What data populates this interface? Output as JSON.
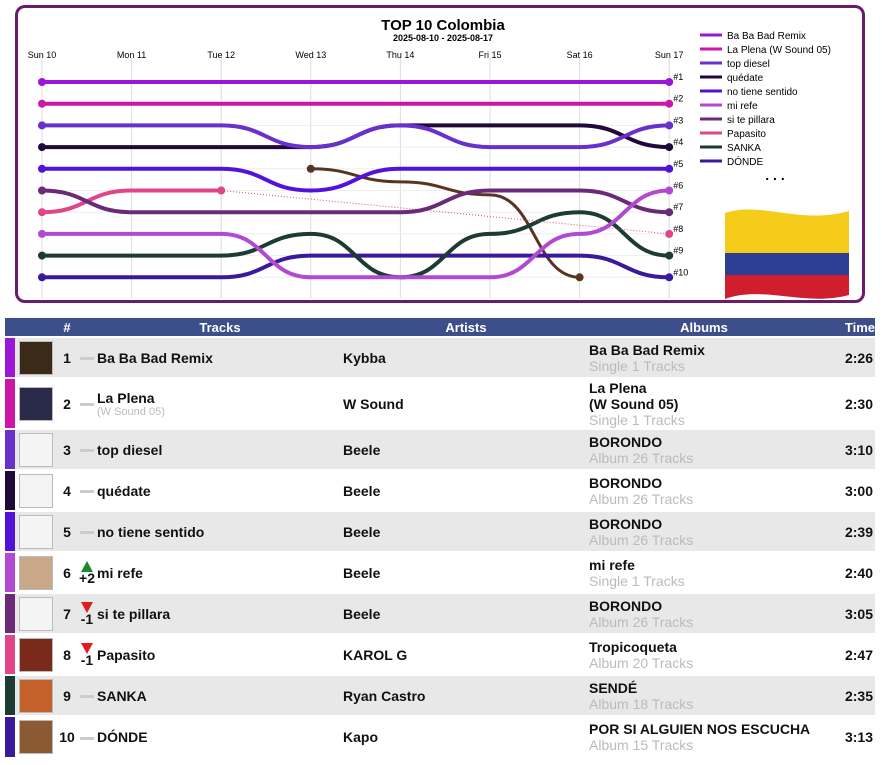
{
  "chart_data": {
    "type": "line",
    "title": "TOP 10 Colombia",
    "subtitle": "2025-08-10 - 2025-08-17",
    "x": [
      "Sun 10",
      "Mon 11",
      "Tue 12",
      "Wed 13",
      "Thu 14",
      "Fri 15",
      "Sat 16",
      "Sun 17"
    ],
    "rank_labels": [
      "#1",
      "#2",
      "#3",
      "#4",
      "#5",
      "#6",
      "#7",
      "#8",
      "#9",
      "#10"
    ],
    "ylim": [
      1,
      10
    ],
    "more_indicator": ". . .",
    "series": [
      {
        "name": "Ba Ba Bad Remix",
        "color": "#9b16d6",
        "values": [
          1,
          1,
          1,
          1,
          1,
          1,
          1,
          1
        ]
      },
      {
        "name": "La Plena (W Sound 05)",
        "color": "#cc16a8",
        "values": [
          2,
          2,
          2,
          2,
          2,
          2,
          2,
          2
        ]
      },
      {
        "name": "top diesel",
        "color": "#6a30cc",
        "values": [
          3,
          3,
          3,
          4,
          3,
          4,
          4,
          3
        ]
      },
      {
        "name": "quédate",
        "color": "#1f0a3a",
        "values": [
          4,
          4,
          4,
          4,
          3,
          3,
          3,
          4
        ]
      },
      {
        "name": "no tiene sentido",
        "color": "#5212d9",
        "values": [
          5,
          5,
          5,
          6,
          5,
          5,
          5,
          5
        ]
      },
      {
        "name": "mi refe",
        "color": "#b24ad1",
        "values": [
          8,
          8,
          8,
          10,
          10,
          10,
          8,
          6
        ]
      },
      {
        "name": "si te pillara",
        "color": "#6b2a78",
        "values": [
          6,
          7,
          7,
          7,
          7,
          6,
          6,
          7
        ]
      },
      {
        "name": "Papasito",
        "color": "#e0458a",
        "values": [
          7,
          6,
          6,
          null,
          null,
          null,
          null,
          8
        ]
      },
      {
        "name": "SANKA",
        "color": "#1c3b33",
        "values": [
          9,
          9,
          9,
          8,
          10,
          8,
          7,
          9
        ]
      },
      {
        "name": "DÓNDE",
        "color": "#3a1a9a",
        "values": [
          10,
          10,
          10,
          9,
          9,
          9,
          9,
          10
        ]
      },
      {
        "name": "",
        "color": "#5a3322",
        "values": [
          null,
          null,
          null,
          5,
          null,
          null,
          10,
          null
        ],
        "curve": [
          [
            3,
            5
          ],
          [
            4,
            5.6
          ],
          [
            5,
            6.2
          ],
          [
            6,
            10
          ]
        ]
      }
    ]
  },
  "table": {
    "headers": {
      "rank": "#",
      "tracks": "Tracks",
      "artists": "Artists",
      "albums": "Albums",
      "time": "Time"
    },
    "rows": [
      {
        "rank": "1",
        "change": "",
        "dir": "same",
        "track": "Ba Ba Bad Remix",
        "track_sub": "",
        "artist": "Kybba",
        "album": "Ba Ba Bad Remix",
        "album_sub": "Single 1 Tracks",
        "time": "2:26",
        "color": "#9b16d6",
        "cover": "#3a2a18"
      },
      {
        "rank": "2",
        "change": "",
        "dir": "same",
        "track": "La Plena",
        "track_sub": "(W Sound 05)",
        "artist": "W Sound",
        "album": "La Plena\n(W Sound 05)",
        "album_sub": "Single 1 Tracks",
        "time": "2:30",
        "color": "#cc16a8",
        "cover": "#2a2a4a"
      },
      {
        "rank": "3",
        "change": "",
        "dir": "same",
        "track": "top diesel",
        "track_sub": "",
        "artist": "Beele",
        "album": "BORONDO",
        "album_sub": "Album 26 Tracks",
        "time": "3:10",
        "color": "#6a30cc",
        "cover": "#f4f4f4"
      },
      {
        "rank": "4",
        "change": "",
        "dir": "same",
        "track": "quédate",
        "track_sub": "",
        "artist": "Beele",
        "album": "BORONDO",
        "album_sub": "Album 26 Tracks",
        "time": "3:00",
        "color": "#1f0a3a",
        "cover": "#f4f4f4"
      },
      {
        "rank": "5",
        "change": "",
        "dir": "same",
        "track": "no tiene sentido",
        "track_sub": "",
        "artist": "Beele",
        "album": "BORONDO",
        "album_sub": "Album 26 Tracks",
        "time": "2:39",
        "color": "#5212d9",
        "cover": "#f4f4f4"
      },
      {
        "rank": "6",
        "change": "+2",
        "dir": "up",
        "track": "mi refe",
        "track_sub": "",
        "artist": "Beele",
        "album": "mi refe",
        "album_sub": "Single 1 Tracks",
        "time": "2:40",
        "color": "#b24ad1",
        "cover": "#c9a88a"
      },
      {
        "rank": "7",
        "change": "-1",
        "dir": "down",
        "track": "si te pillara",
        "track_sub": "",
        "artist": "Beele",
        "album": "BORONDO",
        "album_sub": "Album 26 Tracks",
        "time": "3:05",
        "color": "#6b2a78",
        "cover": "#f4f4f4"
      },
      {
        "rank": "8",
        "change": "-1",
        "dir": "down",
        "track": "Papasito",
        "track_sub": "",
        "artist": "KAROL G",
        "album": "Tropicoqueta",
        "album_sub": "Album 20 Tracks",
        "time": "2:47",
        "color": "#e0458a",
        "cover": "#7a2a1a"
      },
      {
        "rank": "9",
        "change": "",
        "dir": "same",
        "track": "SANKA",
        "track_sub": "",
        "artist": "Ryan Castro",
        "album": "SENDÉ",
        "album_sub": "Album 18 Tracks",
        "time": "2:35",
        "color": "#1c3b33",
        "cover": "#c4612a"
      },
      {
        "rank": "10",
        "change": "",
        "dir": "same",
        "track": "DÓNDE",
        "track_sub": "",
        "artist": "Kapo",
        "album": "POR SI ALGUIEN NOS ESCUCHA",
        "album_sub": "Album 15 Tracks",
        "time": "3:13",
        "color": "#3a1a9a",
        "cover": "#8a5a32"
      }
    ]
  },
  "flag_colors": [
    "#f5cc1a",
    "#2c3f94",
    "#cf1f2f"
  ]
}
